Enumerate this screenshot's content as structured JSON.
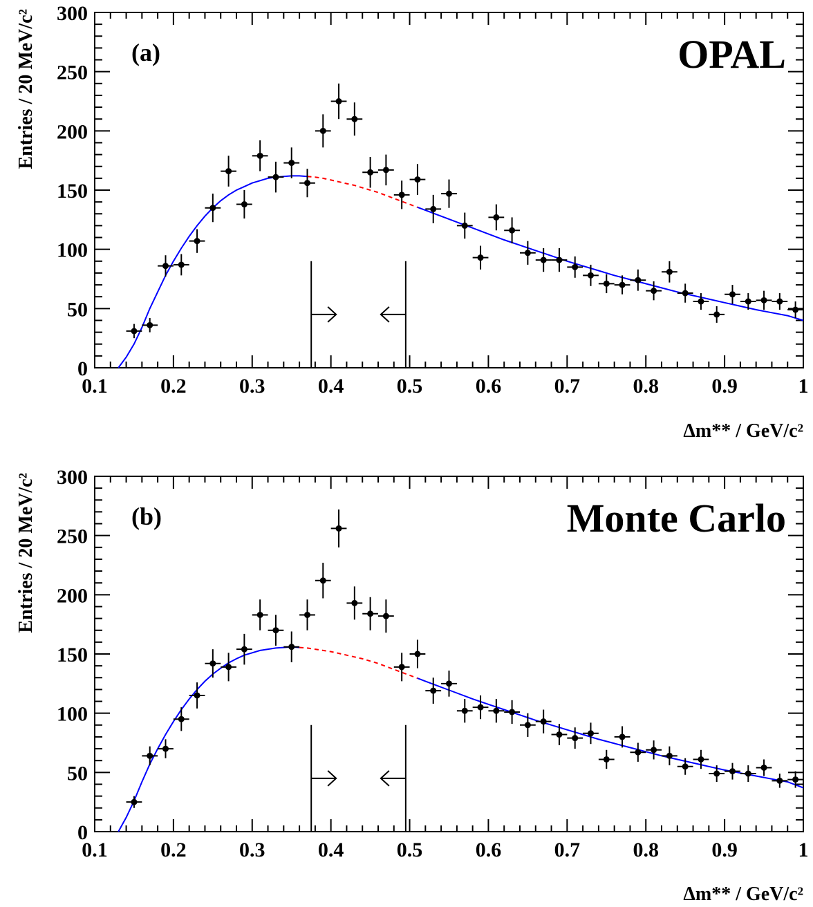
{
  "chart_data": [
    {
      "type": "scatter",
      "panel_label": "(a)",
      "experiment_label": "OPAL",
      "xlabel": "Δm** / GeV/c²",
      "ylabel": "Entries / 20 MeV/c²",
      "xlim": [
        0.1,
        1.0
      ],
      "ylim": [
        0,
        300
      ],
      "x_ticks": [
        0.1,
        0.2,
        0.3,
        0.4,
        0.5,
        0.6,
        0.7,
        0.8,
        0.9,
        1.0
      ],
      "x_tick_labels": [
        "0.1",
        "0.2",
        "0.3",
        "0.4",
        "0.5",
        "0.6",
        "0.7",
        "0.8",
        "0.9",
        "1"
      ],
      "y_ticks": [
        0,
        50,
        100,
        150,
        200,
        250,
        300
      ],
      "y_tick_labels": [
        "0",
        "50",
        "100",
        "150",
        "200",
        "250",
        "300"
      ],
      "bin_width": 0.02,
      "points": {
        "x": [
          0.15,
          0.17,
          0.19,
          0.21,
          0.23,
          0.25,
          0.27,
          0.29,
          0.31,
          0.33,
          0.35,
          0.37,
          0.39,
          0.41,
          0.43,
          0.45,
          0.47,
          0.49,
          0.51,
          0.53,
          0.55,
          0.57,
          0.59,
          0.61,
          0.63,
          0.65,
          0.67,
          0.69,
          0.71,
          0.73,
          0.75,
          0.77,
          0.79,
          0.81,
          0.83,
          0.85,
          0.87,
          0.89,
          0.91,
          0.93,
          0.95,
          0.97,
          0.99
        ],
        "y": [
          31,
          36,
          86,
          87,
          107,
          135,
          166,
          138,
          179,
          161,
          173,
          156,
          200,
          225,
          210,
          165,
          167,
          146,
          159,
          134,
          147,
          120,
          93,
          127,
          116,
          97,
          91,
          91,
          85,
          78,
          71,
          70,
          74,
          65,
          81,
          63,
          56,
          45,
          62,
          56,
          57,
          56,
          49
        ],
        "yerr": [
          6,
          6,
          9,
          9,
          10,
          12,
          13,
          12,
          13,
          13,
          13,
          12,
          14,
          15,
          14,
          13,
          13,
          12,
          13,
          12,
          12,
          11,
          10,
          11,
          11,
          10,
          10,
          10,
          9,
          9,
          8,
          8,
          9,
          8,
          9,
          8,
          7,
          7,
          8,
          7,
          8,
          7,
          7
        ]
      },
      "fit_curve": {
        "x": [
          0.13,
          0.14,
          0.15,
          0.16,
          0.17,
          0.18,
          0.19,
          0.2,
          0.21,
          0.22,
          0.23,
          0.24,
          0.25,
          0.26,
          0.27,
          0.28,
          0.29,
          0.3,
          0.31,
          0.32,
          0.33,
          0.34,
          0.35,
          0.36,
          0.37,
          0.38,
          0.39,
          0.4,
          0.41,
          0.42,
          0.43,
          0.44,
          0.45,
          0.46,
          0.47,
          0.48,
          0.49,
          0.5,
          0.51,
          0.52,
          0.54,
          0.56,
          0.58,
          0.6,
          0.62,
          0.64,
          0.66,
          0.68,
          0.7,
          0.72,
          0.74,
          0.76,
          0.78,
          0.8,
          0.82,
          0.84,
          0.86,
          0.88,
          0.9,
          0.92,
          0.94,
          0.96,
          0.98,
          1.0
        ],
        "y": [
          0,
          9,
          20,
          34,
          50,
          64,
          78,
          90,
          101,
          111,
          120,
          128,
          135,
          141,
          146,
          150,
          153,
          156,
          158,
          160,
          161,
          161.5,
          162,
          162,
          161.5,
          161,
          160,
          158.5,
          157,
          155.5,
          154,
          152,
          150,
          148,
          145.5,
          143,
          140.5,
          138,
          135.5,
          133,
          128,
          123,
          118,
          113,
          108,
          103.5,
          99,
          94.5,
          90,
          86,
          82,
          78,
          74.5,
          71,
          67.5,
          64,
          61,
          58,
          55,
          52,
          49,
          46.5,
          44,
          40
        ],
        "dashed_range": [
          0.37,
          0.51
        ],
        "color": "#0000ff",
        "dashed_color": "#ff0000"
      },
      "signal_window": {
        "lower": 0.375,
        "upper": 0.495
      }
    },
    {
      "type": "scatter",
      "panel_label": "(b)",
      "experiment_label": "Monte Carlo",
      "xlabel": "Δm** / GeV/c²",
      "ylabel": "Entries / 20 MeV/c²",
      "xlim": [
        0.1,
        1.0
      ],
      "ylim": [
        0,
        300
      ],
      "x_ticks": [
        0.1,
        0.2,
        0.3,
        0.4,
        0.5,
        0.6,
        0.7,
        0.8,
        0.9,
        1.0
      ],
      "x_tick_labels": [
        "0.1",
        "0.2",
        "0.3",
        "0.4",
        "0.5",
        "0.6",
        "0.7",
        "0.8",
        "0.9",
        "1"
      ],
      "y_ticks": [
        0,
        50,
        100,
        150,
        200,
        250,
        300
      ],
      "y_tick_labels": [
        "0",
        "50",
        "100",
        "150",
        "200",
        "250",
        "300"
      ],
      "bin_width": 0.02,
      "points": {
        "x": [
          0.15,
          0.17,
          0.19,
          0.21,
          0.23,
          0.25,
          0.27,
          0.29,
          0.31,
          0.33,
          0.35,
          0.37,
          0.39,
          0.41,
          0.43,
          0.45,
          0.47,
          0.49,
          0.51,
          0.53,
          0.55,
          0.57,
          0.59,
          0.61,
          0.63,
          0.65,
          0.67,
          0.69,
          0.71,
          0.73,
          0.75,
          0.77,
          0.79,
          0.81,
          0.83,
          0.85,
          0.87,
          0.89,
          0.91,
          0.93,
          0.95,
          0.97,
          0.99
        ],
        "y": [
          25,
          64,
          70,
          95,
          115,
          142,
          139,
          154,
          183,
          170,
          156,
          183,
          212,
          256,
          193,
          184,
          182,
          139,
          150,
          119,
          125,
          102,
          105,
          102,
          101,
          90,
          93,
          82,
          79,
          83,
          61,
          80,
          67,
          69,
          64,
          55,
          61,
          49,
          51,
          49,
          54,
          43,
          44
        ],
        "yerr": [
          5,
          8,
          8,
          10,
          11,
          12,
          12,
          13,
          13,
          13,
          13,
          13,
          15,
          16,
          14,
          14,
          14,
          12,
          12,
          11,
          11,
          10,
          10,
          10,
          10,
          10,
          10,
          9,
          9,
          9,
          8,
          9,
          8,
          8,
          8,
          7,
          8,
          7,
          7,
          7,
          7,
          6,
          7
        ]
      },
      "fit_curve": {
        "x": [
          0.13,
          0.14,
          0.15,
          0.16,
          0.17,
          0.18,
          0.19,
          0.2,
          0.21,
          0.22,
          0.23,
          0.24,
          0.25,
          0.26,
          0.27,
          0.28,
          0.29,
          0.3,
          0.31,
          0.32,
          0.33,
          0.34,
          0.35,
          0.36,
          0.37,
          0.38,
          0.39,
          0.4,
          0.41,
          0.42,
          0.43,
          0.44,
          0.45,
          0.46,
          0.47,
          0.48,
          0.49,
          0.5,
          0.51,
          0.52,
          0.54,
          0.56,
          0.58,
          0.6,
          0.62,
          0.64,
          0.66,
          0.68,
          0.7,
          0.72,
          0.74,
          0.76,
          0.78,
          0.8,
          0.82,
          0.84,
          0.86,
          0.88,
          0.9,
          0.92,
          0.94,
          0.96,
          0.98,
          1.0
        ],
        "y": [
          0,
          12,
          26,
          42,
          57,
          70,
          82,
          93,
          103,
          112,
          120,
          127,
          133,
          138,
          142.5,
          146,
          149,
          151,
          153,
          154,
          155,
          155.5,
          156,
          155.5,
          155,
          154,
          153,
          152,
          150.5,
          149,
          147.5,
          146,
          144,
          142,
          139.5,
          137,
          134.5,
          132,
          129.5,
          127,
          122,
          117,
          112,
          107.5,
          103,
          98.5,
          94,
          90,
          86,
          82,
          78,
          74.5,
          71,
          67.5,
          64,
          61,
          58,
          55,
          52,
          49.5,
          47,
          44.5,
          42,
          37
        ],
        "dashed_range": [
          0.36,
          0.51
        ],
        "color": "#0000ff",
        "dashed_color": "#ff0000"
      },
      "signal_window": {
        "lower": 0.375,
        "upper": 0.495
      }
    }
  ]
}
